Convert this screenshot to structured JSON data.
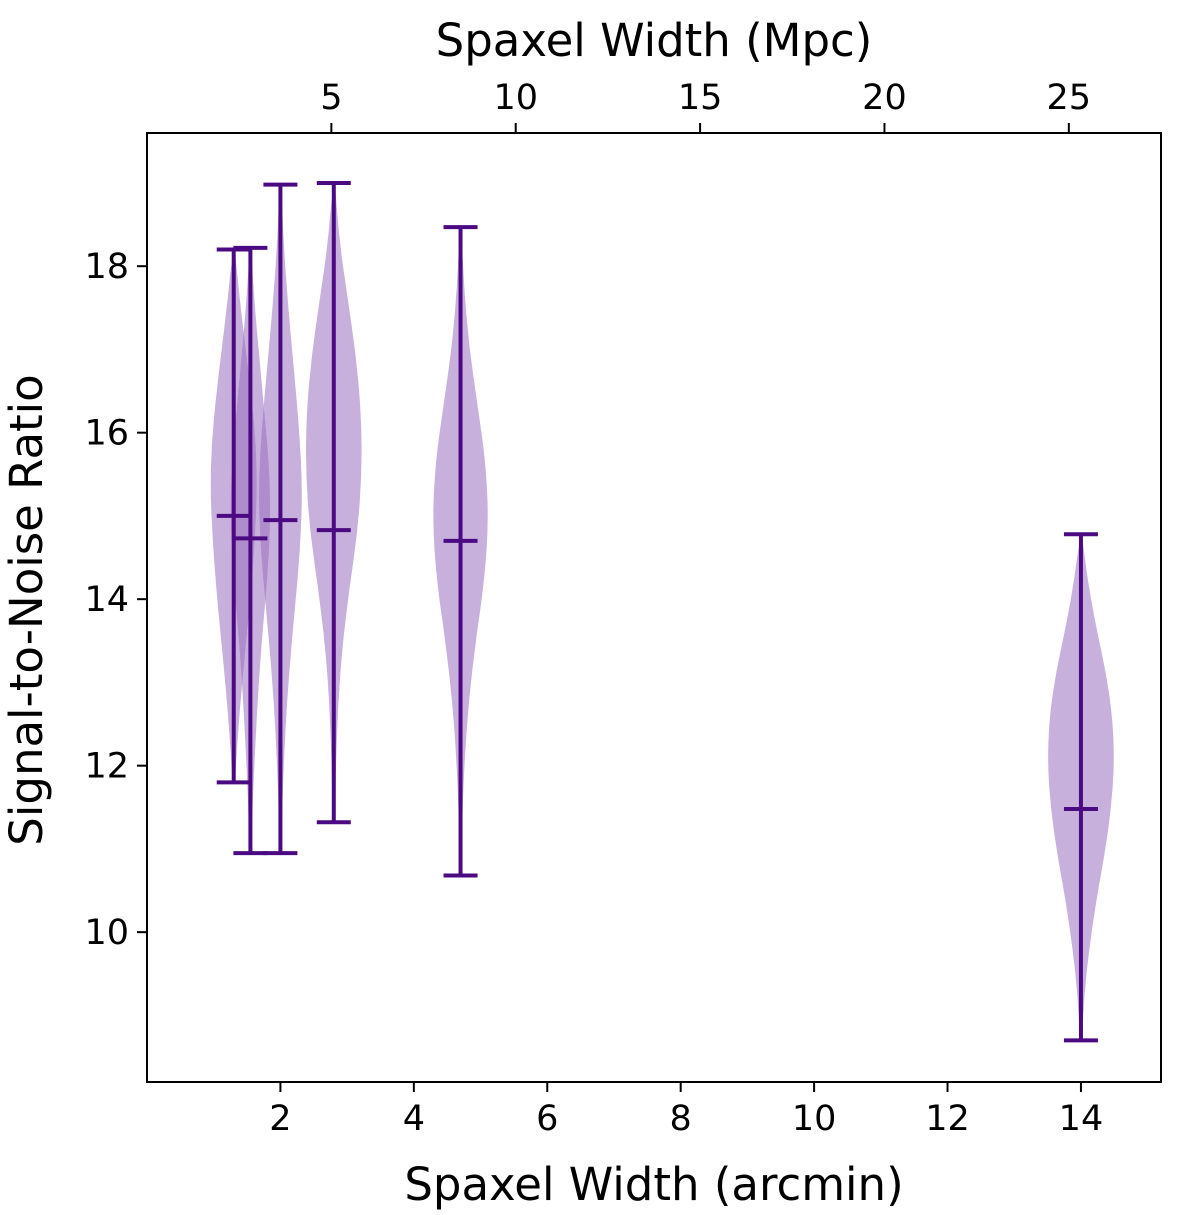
{
  "chart_data": {
    "type": "violin",
    "title": "",
    "xlabel": "Spaxel Width (arcmin)",
    "ylabel": "Signal-to-Noise Ratio",
    "x2label": "Spaxel Width (Mpc)",
    "xlim": [
      0.0,
      15.2
    ],
    "ylim": [
      8.2,
      19.6
    ],
    "x2lim": [
      0.0,
      27.5
    ],
    "xticks": [
      2,
      4,
      6,
      8,
      10,
      12,
      14
    ],
    "yticks": [
      10,
      12,
      14,
      16,
      18
    ],
    "x2ticks": [
      5,
      10,
      15,
      20,
      25
    ],
    "grid": false,
    "colors": {
      "fill": "#9b6fc0",
      "line": "#4b0a82",
      "axis": "#000000"
    },
    "violins": [
      {
        "x": 1.3,
        "min": 11.8,
        "max": 18.2,
        "median": 15.0,
        "half_width": 0.35,
        "profile": [
          0.05,
          0.25,
          0.5,
          0.75,
          0.95,
          1.0,
          0.9,
          0.75,
          0.55,
          0.35,
          0.18,
          0.05
        ]
      },
      {
        "x": 1.55,
        "min": 10.95,
        "max": 18.22,
        "median": 14.73,
        "half_width": 0.3,
        "profile": [
          0.04,
          0.2,
          0.45,
          0.7,
          0.95,
          1.0,
          0.85,
          0.6,
          0.4,
          0.25,
          0.12,
          0.04
        ]
      },
      {
        "x": 2.0,
        "min": 10.95,
        "max": 18.98,
        "median": 14.95,
        "half_width": 0.33,
        "profile": [
          0.04,
          0.15,
          0.35,
          0.6,
          0.85,
          1.0,
          0.9,
          0.65,
          0.4,
          0.22,
          0.1,
          0.03
        ]
      },
      {
        "x": 2.8,
        "min": 11.32,
        "max": 19.0,
        "median": 14.83,
        "half_width": 0.42,
        "profile": [
          0.04,
          0.2,
          0.5,
          0.8,
          0.98,
          1.0,
          0.85,
          0.55,
          0.3,
          0.15,
          0.08,
          0.03
        ]
      },
      {
        "x": 4.7,
        "min": 10.68,
        "max": 18.47,
        "median": 14.7,
        "half_width": 0.42,
        "profile": [
          0.03,
          0.12,
          0.3,
          0.6,
          0.9,
          1.0,
          0.85,
          0.55,
          0.3,
          0.15,
          0.06,
          0.02
        ]
      },
      {
        "x": 14.0,
        "min": 8.7,
        "max": 14.78,
        "median": 11.48,
        "half_width": 0.5,
        "profile": [
          0.03,
          0.2,
          0.45,
          0.75,
          0.95,
          1.0,
          0.9,
          0.7,
          0.45,
          0.25,
          0.1,
          0.03
        ]
      }
    ]
  }
}
